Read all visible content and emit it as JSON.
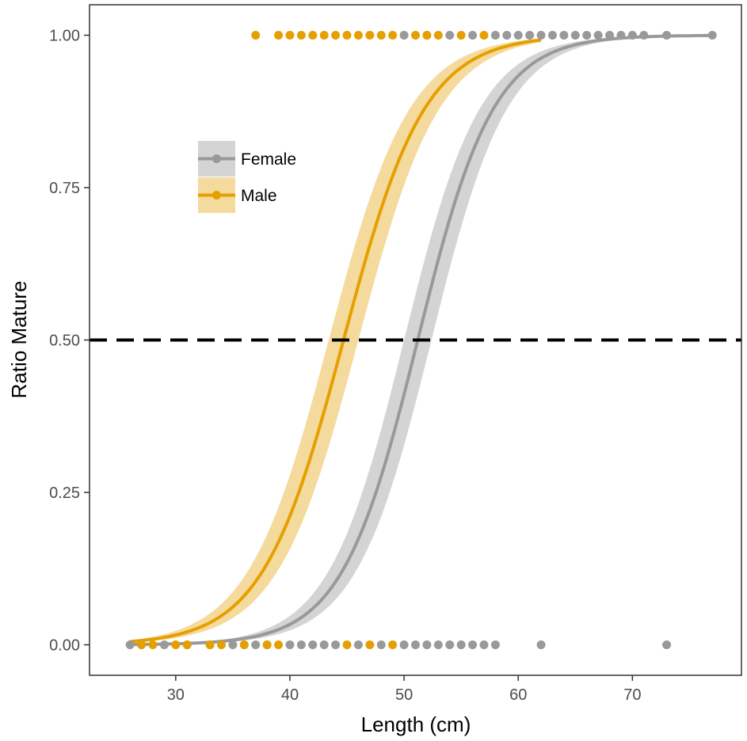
{
  "chart_data": {
    "type": "scatter",
    "xlabel": "Length (cm)",
    "ylabel": "Ratio Mature",
    "xlim": [
      22.45,
      79.55
    ],
    "ylim": [
      -0.05,
      1.05
    ],
    "xticks": [
      30,
      40,
      50,
      60,
      70
    ],
    "xtick_labels": [
      "30",
      "40",
      "50",
      "60",
      "70"
    ],
    "yticks": [
      0,
      0.25,
      0.5,
      0.75,
      1
    ],
    "ytick_labels": [
      "0.00",
      "0.25",
      "0.50",
      "0.75",
      "1.00"
    ],
    "grid": false,
    "legend_position": "top-left",
    "reference_line": {
      "y": 0.5,
      "style": "dashed",
      "color": "#000000"
    },
    "series": [
      {
        "name": "Female",
        "color": "#999999",
        "band_color": "#cccccc",
        "curve": {
          "x_range": [
            26,
            77
          ],
          "x50": 51.2,
          "slope": 0.3,
          "band_lower_x50": 52.4,
          "band_upper_x50": 50.0
        },
        "points_mature_x": [
          50,
          52,
          54,
          56,
          58,
          59,
          60,
          61,
          62,
          63,
          64,
          65,
          66,
          67,
          68,
          69,
          70,
          71,
          73,
          77
        ],
        "points_immature_x": [
          26,
          27,
          29,
          31,
          33,
          35,
          36,
          37,
          38,
          40,
          41,
          42,
          43,
          44,
          46,
          48,
          50,
          51,
          52,
          53,
          54,
          55,
          56,
          57,
          58,
          62,
          73
        ]
      },
      {
        "name": "Male",
        "color": "#E69F00",
        "band_color": "#f3d48c",
        "curve": {
          "x_range": [
            26,
            62
          ],
          "x50": 44.7,
          "slope": 0.28,
          "band_lower_x50": 46.0,
          "band_upper_x50": 43.4
        },
        "points_mature_x": [
          37,
          39,
          40,
          41,
          42,
          43,
          44,
          45,
          46,
          47,
          48,
          49,
          51,
          52,
          53,
          55,
          57
        ],
        "points_immature_x": [
          27,
          28,
          30,
          31,
          33,
          34,
          36,
          38,
          39,
          45,
          47,
          49
        ]
      }
    ]
  }
}
